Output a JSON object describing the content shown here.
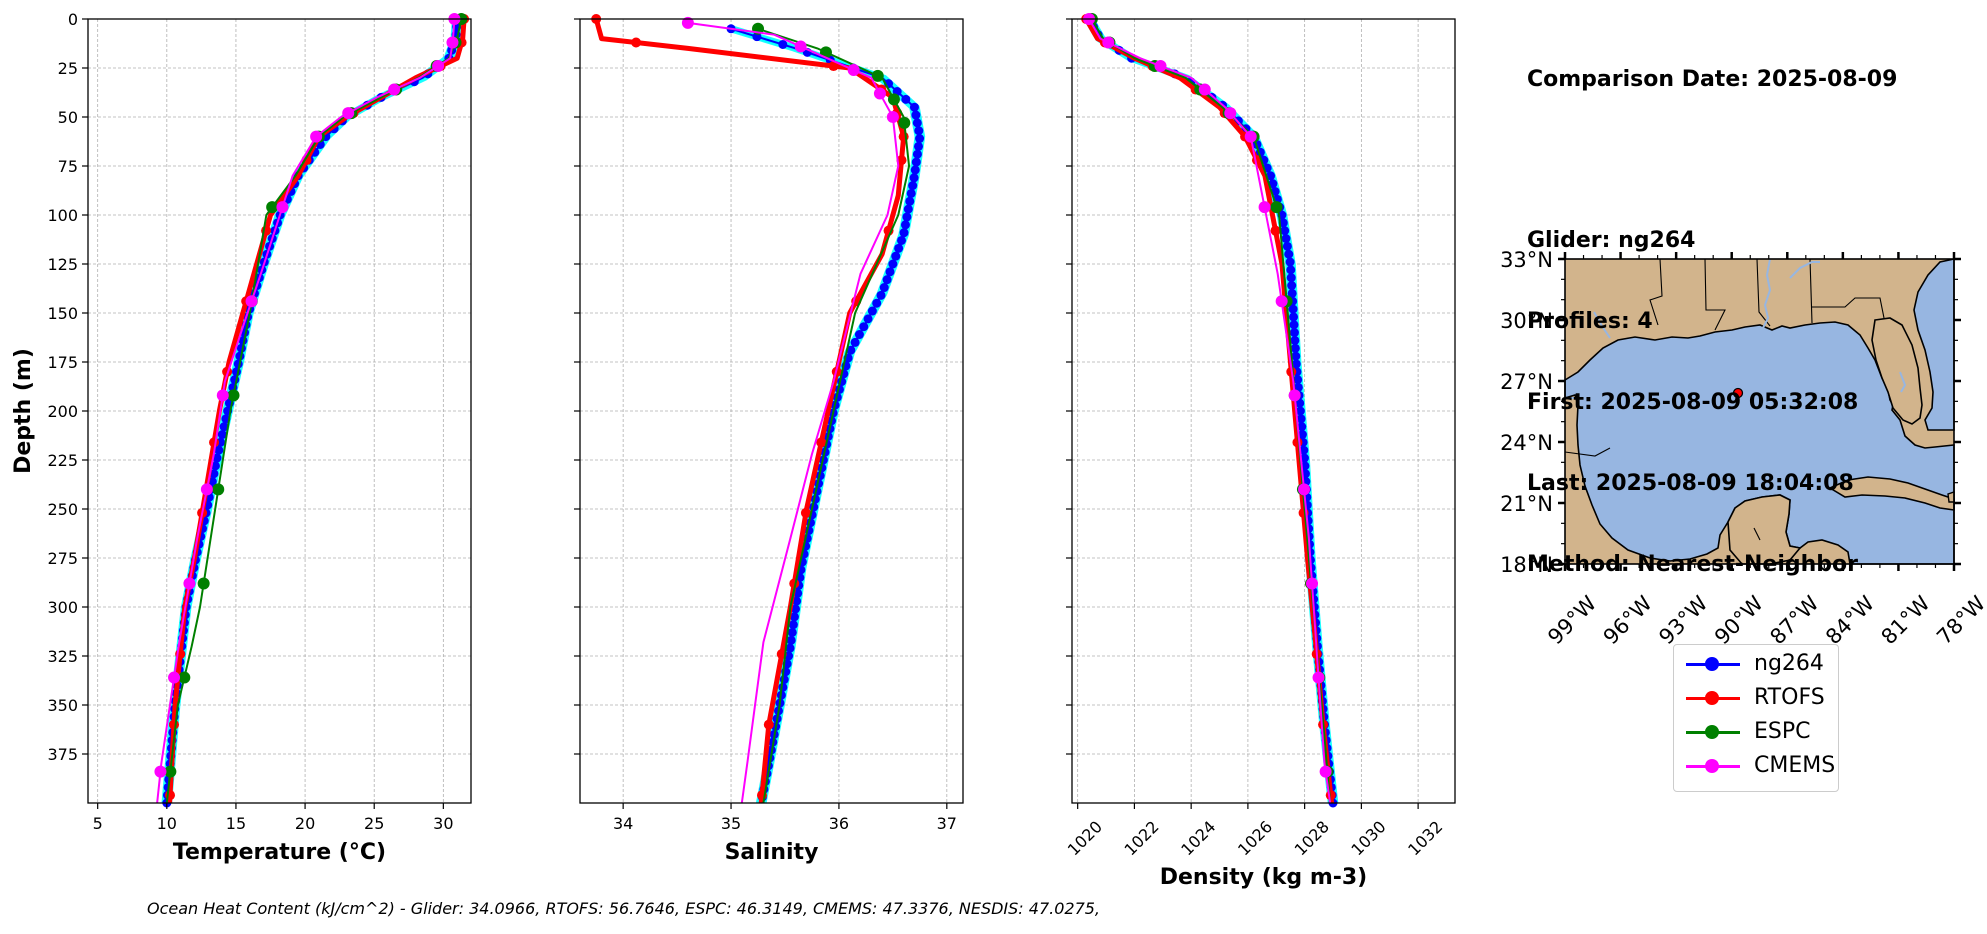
{
  "info": {
    "comparison_date": "Comparison Date: 2025-08-09",
    "glider": "Glider: ng264",
    "profiles": "Profiles: 4",
    "first": "First: 2025-08-09 05:32:08",
    "last": "Last: 2025-08-09 18:04:08",
    "method": "Method: Nearest-Neighbor"
  },
  "footer": "Ocean Heat Content (kJ/cm^2) - Glider: 34.0966,  RTOFS: 56.7646,  ESPC: 46.3149,  CMEMS: 47.3376,  NESDIS: 47.0275,",
  "colors": {
    "ng264": "#0000ff",
    "ng264_profiles": "#00ffff",
    "RTOFS": "#ff0000",
    "ESPC": "#008000",
    "CMEMS": "#ff00ff",
    "land": "#d2b48c",
    "ocean": "#97b6e1"
  },
  "legend": [
    {
      "name": "ng264",
      "color": "#0000ff"
    },
    {
      "name": "RTOFS",
      "color": "#ff0000"
    },
    {
      "name": "ESPC",
      "color": "#008000"
    },
    {
      "name": "CMEMS",
      "color": "#ff00ff"
    }
  ],
  "chart_data": [
    {
      "type": "line",
      "xlabel": "Temperature (°C)",
      "ylabel": "Depth (m)",
      "xlim": [
        4.3,
        32
      ],
      "ylim": [
        400,
        0
      ],
      "xticks": [
        5,
        10,
        15,
        20,
        25,
        30
      ],
      "yticks": [
        0,
        25,
        50,
        75,
        100,
        125,
        150,
        175,
        200,
        225,
        250,
        275,
        300,
        325,
        350,
        375
      ],
      "grid": true,
      "series": [
        {
          "name": "ng264",
          "x": [
            31,
            30.9,
            30.4,
            28.5,
            25.5,
            23,
            21.5,
            19.5,
            18.2,
            17,
            15.9,
            15.2,
            14.4,
            13.6,
            12.9,
            12.1,
            11.4,
            10.6,
            10
          ],
          "y": [
            0,
            10,
            20,
            30,
            40,
            50,
            60,
            80,
            100,
            125,
            150,
            175,
            200,
            225,
            250,
            275,
            300,
            350,
            400
          ]
        },
        {
          "name": "RTOFS",
          "x": [
            31.5,
            31.4,
            31,
            28,
            25.5,
            23,
            21,
            19.5,
            17.5,
            15.5,
            14.5,
            13.8,
            13.2,
            12.6,
            12,
            11.3,
            10.6,
            10.2
          ],
          "y": [
            0,
            10,
            20,
            30,
            40,
            50,
            60,
            80,
            100,
            150,
            175,
            200,
            225,
            250,
            275,
            300,
            350,
            400
          ]
        },
        {
          "name": "ESPC",
          "x": [
            31.3,
            31,
            30.4,
            28.2,
            25.5,
            22.8,
            21,
            19.3,
            17.2,
            16,
            14.6,
            13.5,
            12.4,
            11.8,
            10.8,
            10
          ],
          "y": [
            0,
            10,
            20,
            30,
            40,
            50,
            60,
            80,
            100,
            150,
            200,
            250,
            300,
            320,
            350,
            400
          ]
        },
        {
          "name": "CMEMS",
          "x": [
            30.8,
            30.7,
            30.5,
            28.3,
            25.2,
            22.6,
            20.8,
            19.1,
            16.8,
            15.6,
            14.2,
            13.4,
            12.2,
            10.9,
            9.6,
            9.3
          ],
          "y": [
            0,
            10,
            20,
            30,
            40,
            50,
            60,
            80,
            130,
            155,
            185,
            222,
            265,
            318,
            380,
            400
          ]
        }
      ]
    },
    {
      "type": "line",
      "xlabel": "Salinity",
      "ylabel": "",
      "xlim": [
        33.6,
        37.15
      ],
      "ylim": [
        400,
        0
      ],
      "xticks": [
        34,
        35,
        36,
        37
      ],
      "yticks": [
        0,
        25,
        50,
        75,
        100,
        125,
        150,
        175,
        200,
        225,
        250,
        275,
        300,
        325,
        350,
        375
      ],
      "grid": true,
      "series": [
        {
          "name": "ng264",
          "x": [
            35.0,
            35.6,
            36.4,
            36.7,
            36.75,
            36.7,
            36.6,
            36.4,
            36.1,
            35.95,
            35.8,
            35.65,
            35.55,
            35.45,
            35.35,
            35.28
          ],
          "y": [
            5,
            15,
            30,
            45,
            60,
            80,
            110,
            140,
            170,
            200,
            240,
            280,
            320,
            350,
            380,
            400
          ]
        },
        {
          "name": "RTOFS",
          "x": [
            33.75,
            33.8,
            34.6,
            36.1,
            36.5,
            36.6,
            36.55,
            36.4,
            36.1,
            35.9,
            35.7,
            35.55,
            35.45,
            35.35,
            35.28
          ],
          "y": [
            0,
            10,
            15,
            25,
            40,
            60,
            90,
            120,
            150,
            200,
            250,
            300,
            330,
            360,
            400
          ]
        },
        {
          "name": "ESPC",
          "x": [
            35.25,
            35.8,
            36.4,
            36.6,
            36.65,
            36.55,
            36.15,
            35.95,
            35.75,
            35.55,
            35.45,
            35.3
          ],
          "y": [
            5,
            15,
            30,
            50,
            75,
            100,
            150,
            200,
            250,
            300,
            350,
            400
          ]
        },
        {
          "name": "CMEMS",
          "x": [
            34.6,
            35.4,
            36.3,
            36.5,
            36.55,
            36.45,
            36.2,
            35.95,
            35.75,
            35.55,
            35.3,
            35.15,
            35.1
          ],
          "y": [
            2,
            8,
            30,
            50,
            75,
            100,
            130,
            185,
            222,
            265,
            318,
            380,
            400
          ]
        }
      ]
    },
    {
      "type": "line",
      "xlabel": "Density (kg m-3)",
      "ylabel": "",
      "xlim": [
        1019.8,
        1033.3
      ],
      "ylim": [
        400,
        0
      ],
      "xticks": [
        1020,
        1022,
        1024,
        1026,
        1028,
        1030,
        1032
      ],
      "yticks": [
        0,
        25,
        50,
        75,
        100,
        125,
        150,
        175,
        200,
        225,
        250,
        275,
        300,
        325,
        350,
        375
      ],
      "grid": true,
      "series": [
        {
          "name": "ng264",
          "x": [
            1020.4,
            1020.8,
            1021.9,
            1023.8,
            1025.2,
            1026.2,
            1026.8,
            1027.2,
            1027.5,
            1027.7,
            1028.0,
            1028.2,
            1028.45,
            1028.7,
            1029.0
          ],
          "y": [
            0,
            10,
            20,
            30,
            45,
            60,
            80,
            100,
            125,
            175,
            225,
            275,
            320,
            360,
            400
          ]
        },
        {
          "name": "RTOFS",
          "x": [
            1020.3,
            1020.7,
            1022.0,
            1023.6,
            1025.0,
            1025.9,
            1026.6,
            1027.2,
            1027.5,
            1027.8,
            1028.1,
            1028.4,
            1028.65,
            1028.95
          ],
          "y": [
            0,
            10,
            20,
            30,
            45,
            60,
            80,
            125,
            175,
            225,
            275,
            320,
            360,
            400
          ]
        },
        {
          "name": "ESPC",
          "x": [
            1020.5,
            1020.9,
            1022.0,
            1023.8,
            1025.1,
            1026.2,
            1027.1,
            1027.7,
            1028.3,
            1028.6,
            1028.9
          ],
          "y": [
            0,
            10,
            20,
            30,
            45,
            60,
            100,
            200,
            300,
            350,
            400
          ]
        },
        {
          "name": "CMEMS",
          "x": [
            1020.4,
            1020.8,
            1022.2,
            1024.0,
            1025.2,
            1026.1,
            1027.05,
            1027.6,
            1028.15,
            1028.7,
            1028.9
          ],
          "y": [
            0,
            10,
            20,
            30,
            45,
            60,
            130,
            185,
            265,
            380,
            400
          ]
        }
      ]
    },
    {
      "type": "map",
      "xlim": [
        -99,
        -78
      ],
      "ylim": [
        18,
        33
      ],
      "xticks": [
        "99°W",
        "96°W",
        "93°W",
        "90°W",
        "87°W",
        "84°W",
        "81°W",
        "78°W"
      ],
      "yticks": [
        "33°N",
        "30°N",
        "27°N",
        "24°N",
        "21°N",
        "18°N"
      ],
      "marker": {
        "lon": -89.1,
        "lat": 26.6
      }
    }
  ]
}
